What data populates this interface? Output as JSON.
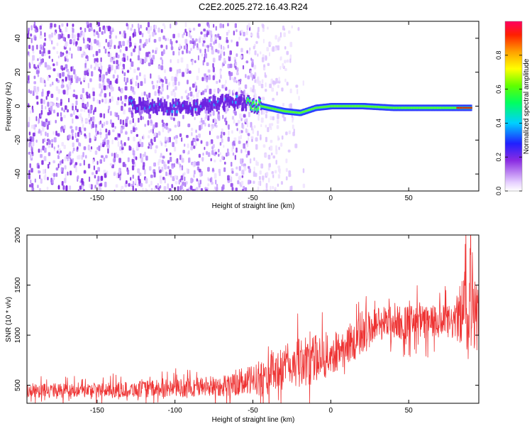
{
  "title": "C2E2.2025.272.16.43.R24",
  "colors": {
    "snr_line": "#ee3333",
    "spectrum_low": "#8a2be2"
  },
  "chart_data": [
    {
      "type": "heatmap",
      "name": "spectrogram",
      "xlabel": "Height of straight line (km)",
      "ylabel": "Frequency (Hz)",
      "xlim": [
        -195,
        95
      ],
      "ylim": [
        -50,
        50
      ],
      "xticks": [
        -150,
        -100,
        -50,
        0,
        50
      ],
      "yticks": [
        -40,
        -20,
        0,
        20,
        40
      ],
      "xtick_labels": [
        "-150",
        "-100",
        "-50",
        "0",
        "50"
      ],
      "ytick_labels": [
        "-40",
        "-20",
        "0",
        "20",
        "40"
      ],
      "signal_trace": {
        "x": [
          -130,
          -110,
          -90,
          -70,
          -60,
          -50,
          -40,
          -30,
          -20,
          -10,
          0,
          10,
          20,
          40,
          60,
          80,
          90
        ],
        "freq": [
          1,
          0,
          -1,
          2,
          3,
          1,
          -1,
          -3,
          -4,
          -1,
          0,
          0,
          0,
          -1,
          -1,
          -1,
          -1
        ]
      },
      "colorbar": {
        "label": "Normalized spectral amplitude",
        "range": [
          0,
          1
        ],
        "ticks": [
          0.0,
          0.2,
          0.4,
          0.6,
          0.8
        ],
        "tick_labels": [
          "0.0",
          "0.2",
          "0.4",
          "0.6",
          "0.8"
        ]
      }
    },
    {
      "type": "line",
      "name": "snr",
      "xlabel": "Height of straight line (km)",
      "ylabel": "SNR (10 * v/v)",
      "xlim": [
        -195,
        95
      ],
      "ylim": [
        320,
        2000
      ],
      "xticks": [
        -150,
        -100,
        -50,
        0,
        50
      ],
      "yticks": [
        500,
        1000,
        1500,
        2000
      ],
      "xtick_labels": [
        "-150",
        "-100",
        "-50",
        "0",
        "50"
      ],
      "ytick_labels": [
        "500",
        "1000",
        "1500",
        "2000"
      ],
      "envelope": {
        "x": [
          -195,
          -150,
          -100,
          -60,
          -45,
          -30,
          -15,
          0,
          10,
          20,
          30,
          40,
          60,
          80,
          90,
          95
        ],
        "low": [
          380,
          380,
          380,
          390,
          400,
          450,
          500,
          600,
          700,
          800,
          950,
          950,
          950,
          950,
          800,
          950
        ],
        "high": [
          520,
          520,
          560,
          620,
          750,
          900,
          1000,
          1000,
          1100,
          1200,
          1300,
          1300,
          1300,
          1300,
          2000,
          1300
        ]
      }
    }
  ]
}
